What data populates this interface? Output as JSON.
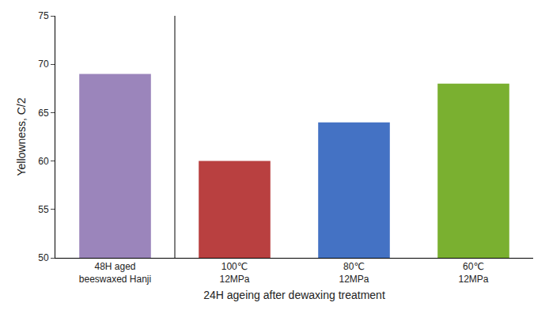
{
  "chart_data": {
    "type": "bar",
    "categories": [
      "48H aged\nbeeswaxed Hanji",
      "100℃\n12MPa",
      "80℃\n12MPa",
      "60℃\n12MPa"
    ],
    "values": [
      69.0,
      60.0,
      64.0,
      68.0
    ],
    "colors": [
      "#9B85BB",
      "#B94040",
      "#4472C4",
      "#7AB030"
    ],
    "xlabel": "24H ageing after dewaxing treatment",
    "ylabel": "Yellowness, C/2",
    "ylim": [
      50,
      75
    ],
    "yticks": [
      50,
      55,
      60,
      65,
      70,
      75
    ],
    "grid": false
  }
}
